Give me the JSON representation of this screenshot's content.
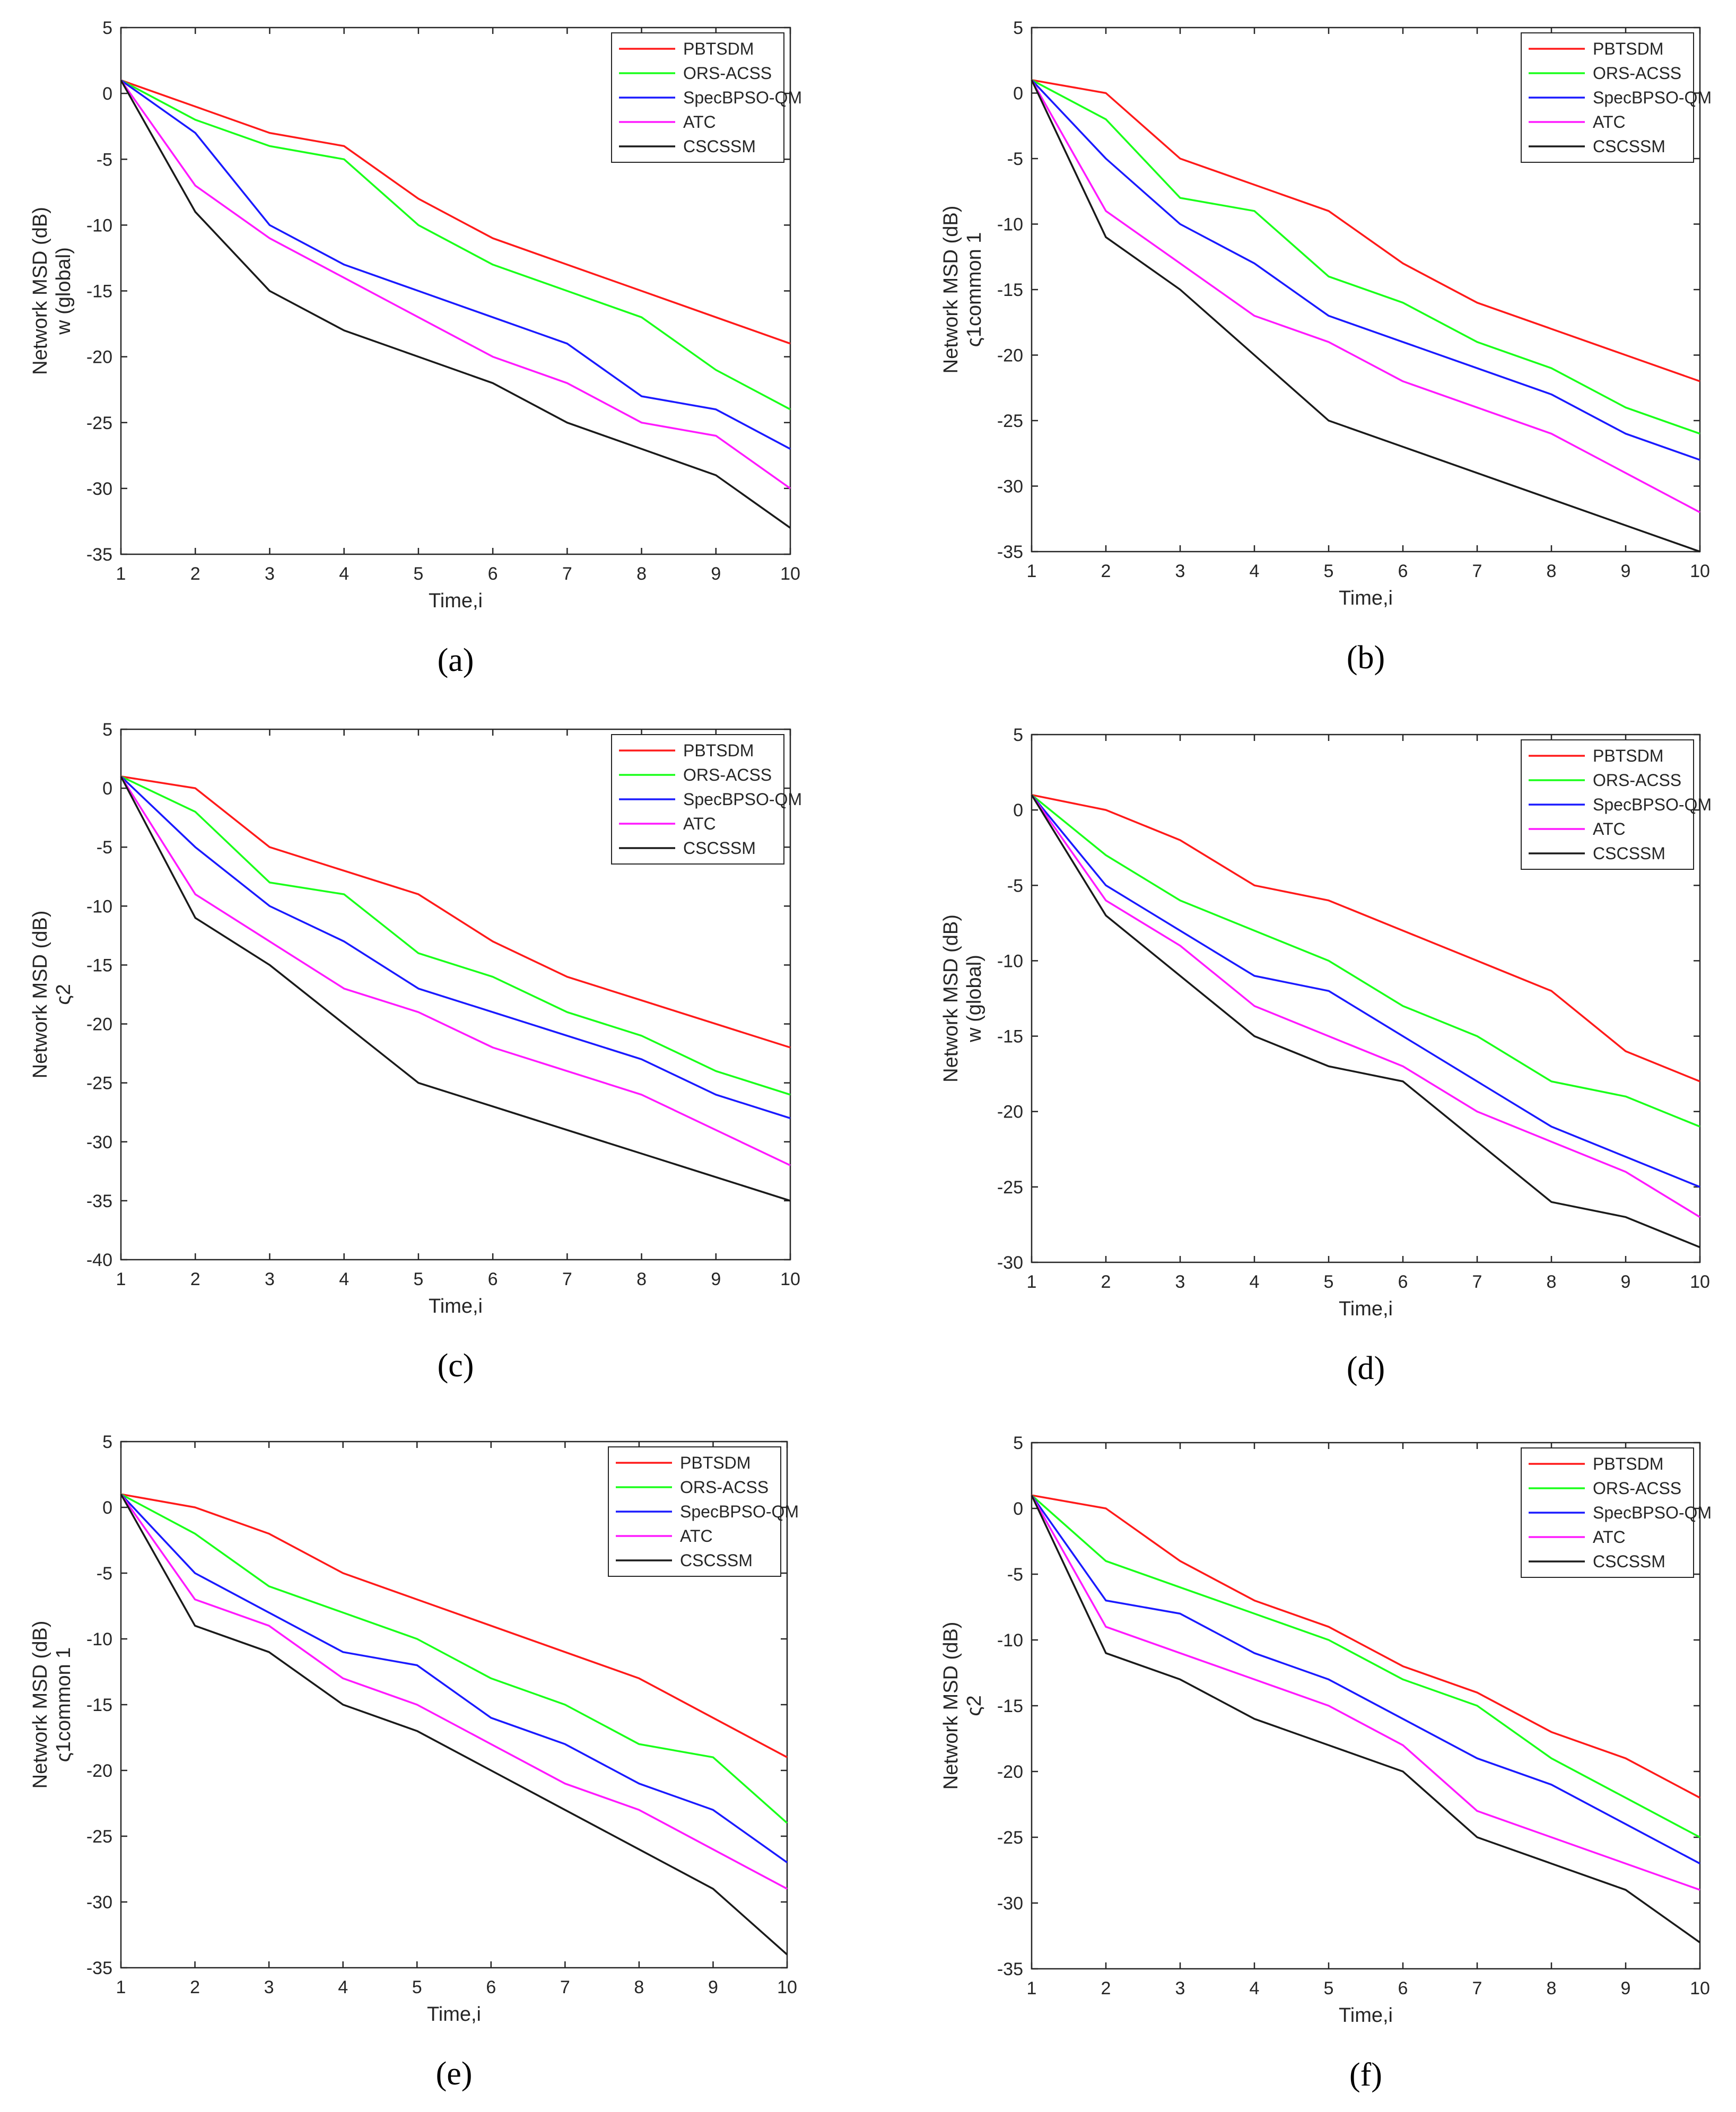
{
  "colors": {
    "PBTSDM": "#ff1a1a",
    "ORS-ACSS": "#1aff1a",
    "SpecBPSO-QM": "#1a1aff",
    "ATC": "#ff1aff",
    "CSCSSM": "#1a1a1a",
    "axis": "#262626"
  },
  "chart_data": [
    {
      "id": "a",
      "type": "line",
      "label": "(a)",
      "xlabel": "Time,i",
      "ylabel": "Network MSD (dB)",
      "ysub": "w (global)",
      "xlim": [
        1,
        10
      ],
      "ylim": [
        -35,
        5
      ],
      "xticks": [
        1,
        2,
        3,
        4,
        5,
        6,
        7,
        8,
        9,
        10
      ],
      "yticks": [
        5,
        0,
        -5,
        -10,
        -15,
        -20,
        -25,
        -30,
        -35
      ],
      "legend_position": "top-right",
      "x": [
        1,
        2,
        3,
        4,
        5,
        6,
        7,
        8,
        9,
        10
      ],
      "series": [
        {
          "name": "PBTSDM",
          "values": [
            1,
            -1,
            -3,
            -4,
            -8,
            -11,
            -13,
            -15,
            -17,
            -19
          ]
        },
        {
          "name": "ORS-ACSS",
          "values": [
            1,
            -2,
            -4,
            -5,
            -10,
            -13,
            -15,
            -17,
            -21,
            -24
          ]
        },
        {
          "name": "SpecBPSO-QM",
          "values": [
            1,
            -3,
            -10,
            -13,
            -15,
            -17,
            -19,
            -23,
            -24,
            -27
          ]
        },
        {
          "name": "ATC",
          "values": [
            1,
            -7,
            -11,
            -14,
            -17,
            -20,
            -22,
            -25,
            -26,
            -30
          ]
        },
        {
          "name": "CSCSSM",
          "values": [
            1,
            -9,
            -15,
            -18,
            -20,
            -22,
            -25,
            -27,
            -29,
            -33
          ]
        }
      ]
    },
    {
      "id": "b",
      "type": "line",
      "label": "(b)",
      "xlabel": "Time,i",
      "ylabel": "Network MSD (dB)",
      "ysub": "ς1common 1",
      "xlim": [
        1,
        10
      ],
      "ylim": [
        -35,
        5
      ],
      "xticks": [
        1,
        2,
        3,
        4,
        5,
        6,
        7,
        8,
        9,
        10
      ],
      "yticks": [
        5,
        0,
        -5,
        -10,
        -15,
        -20,
        -25,
        -30,
        -35
      ],
      "legend_position": "top-right",
      "x": [
        1,
        2,
        3,
        4,
        5,
        6,
        7,
        8,
        9,
        10
      ],
      "series": [
        {
          "name": "PBTSDM",
          "values": [
            1,
            0,
            -5,
            -7,
            -9,
            -13,
            -16,
            -18,
            -20,
            -22
          ]
        },
        {
          "name": "ORS-ACSS",
          "values": [
            1,
            -2,
            -8,
            -9,
            -14,
            -16,
            -19,
            -21,
            -24,
            -26
          ]
        },
        {
          "name": "SpecBPSO-QM",
          "values": [
            1,
            -5,
            -10,
            -13,
            -17,
            -19,
            -21,
            -23,
            -26,
            -28
          ]
        },
        {
          "name": "ATC",
          "values": [
            1,
            -9,
            -13,
            -17,
            -19,
            -22,
            -24,
            -26,
            -29,
            -32
          ]
        },
        {
          "name": "CSCSSM",
          "values": [
            1,
            -11,
            -15,
            -20,
            -25,
            -27,
            -29,
            -31,
            -33,
            -35
          ]
        }
      ]
    },
    {
      "id": "c",
      "type": "line",
      "label": "(c)",
      "xlabel": "Time,i",
      "ylabel": "Network MSD (dB)",
      "ysub": "ς2",
      "xlim": [
        1,
        10
      ],
      "ylim": [
        -40,
        5
      ],
      "xticks": [
        1,
        2,
        3,
        4,
        5,
        6,
        7,
        8,
        9,
        10
      ],
      "yticks": [
        5,
        0,
        -5,
        -10,
        -15,
        -20,
        -25,
        -30,
        -35,
        -40
      ],
      "legend_position": "top-right",
      "x": [
        1,
        2,
        3,
        4,
        5,
        6,
        7,
        8,
        9,
        10
      ],
      "series": [
        {
          "name": "PBTSDM",
          "values": [
            1,
            0,
            -5,
            -7,
            -9,
            -13,
            -16,
            -18,
            -20,
            -22
          ]
        },
        {
          "name": "ORS-ACSS",
          "values": [
            1,
            -2,
            -8,
            -9,
            -14,
            -16,
            -19,
            -21,
            -24,
            -26
          ]
        },
        {
          "name": "SpecBPSO-QM",
          "values": [
            1,
            -5,
            -10,
            -13,
            -17,
            -19,
            -21,
            -23,
            -26,
            -28
          ]
        },
        {
          "name": "ATC",
          "values": [
            1,
            -9,
            -13,
            -17,
            -19,
            -22,
            -24,
            -26,
            -29,
            -32
          ]
        },
        {
          "name": "CSCSSM",
          "values": [
            1,
            -11,
            -15,
            -20,
            -25,
            -27,
            -29,
            -31,
            -33,
            -35
          ]
        }
      ]
    },
    {
      "id": "d",
      "type": "line",
      "label": "(d)",
      "xlabel": "Time,i",
      "ylabel": "Network MSD (dB)",
      "ysub": "w (global)",
      "xlim": [
        1,
        10
      ],
      "ylim": [
        -30,
        5
      ],
      "xticks": [
        1,
        2,
        3,
        4,
        5,
        6,
        7,
        8,
        9,
        10
      ],
      "yticks": [
        5,
        0,
        -5,
        -10,
        -15,
        -20,
        -25,
        -30
      ],
      "legend_position": "top-right",
      "x": [
        1,
        2,
        3,
        4,
        5,
        6,
        7,
        8,
        9,
        10
      ],
      "series": [
        {
          "name": "PBTSDM",
          "values": [
            1,
            0,
            -2,
            -5,
            -6,
            -8,
            -10,
            -12,
            -16,
            -18
          ]
        },
        {
          "name": "ORS-ACSS",
          "values": [
            1,
            -3,
            -6,
            -8,
            -10,
            -13,
            -15,
            -18,
            -19,
            -21
          ]
        },
        {
          "name": "SpecBPSO-QM",
          "values": [
            1,
            -5,
            -8,
            -11,
            -12,
            -15,
            -18,
            -21,
            -23,
            -25
          ]
        },
        {
          "name": "ATC",
          "values": [
            1,
            -6,
            -9,
            -13,
            -15,
            -17,
            -20,
            -22,
            -24,
            -27
          ]
        },
        {
          "name": "CSCSSM",
          "values": [
            1,
            -7,
            -11,
            -15,
            -17,
            -18,
            -22,
            -26,
            -27,
            -29
          ]
        }
      ]
    },
    {
      "id": "e",
      "type": "line",
      "label": "(e)",
      "xlabel": "Time,i",
      "ylabel": "Network MSD (dB)",
      "ysub": "ς1common 1",
      "xlim": [
        1,
        10
      ],
      "ylim": [
        -35,
        5
      ],
      "xticks": [
        1,
        2,
        3,
        4,
        5,
        6,
        7,
        8,
        9,
        10
      ],
      "yticks": [
        5,
        0,
        -5,
        -10,
        -15,
        -20,
        -25,
        -30,
        -35
      ],
      "legend_position": "top-right",
      "x": [
        1,
        2,
        3,
        4,
        5,
        6,
        7,
        8,
        9,
        10
      ],
      "series": [
        {
          "name": "PBTSDM",
          "values": [
            1,
            0,
            -2,
            -5,
            -7,
            -9,
            -11,
            -13,
            -16,
            -19
          ]
        },
        {
          "name": "ORS-ACSS",
          "values": [
            1,
            -2,
            -6,
            -8,
            -10,
            -13,
            -15,
            -18,
            -19,
            -24
          ]
        },
        {
          "name": "SpecBPSO-QM",
          "values": [
            1,
            -5,
            -8,
            -11,
            -12,
            -16,
            -18,
            -21,
            -23,
            -27
          ]
        },
        {
          "name": "ATC",
          "values": [
            1,
            -7,
            -9,
            -13,
            -15,
            -18,
            -21,
            -23,
            -26,
            -29
          ]
        },
        {
          "name": "CSCSSM",
          "values": [
            1,
            -9,
            -11,
            -15,
            -17,
            -20,
            -23,
            -26,
            -29,
            -34
          ]
        }
      ]
    },
    {
      "id": "f",
      "type": "line",
      "label": "(f)",
      "xlabel": "Time,i",
      "ylabel": "Network MSD (dB)",
      "ysub": "ς2",
      "xlim": [
        1,
        10
      ],
      "ylim": [
        -35,
        5
      ],
      "xticks": [
        1,
        2,
        3,
        4,
        5,
        6,
        7,
        8,
        9,
        10
      ],
      "yticks": [
        5,
        0,
        -5,
        -10,
        -15,
        -20,
        -25,
        -30,
        -35
      ],
      "legend_position": "top-right",
      "x": [
        1,
        2,
        3,
        4,
        5,
        6,
        7,
        8,
        9,
        10
      ],
      "series": [
        {
          "name": "PBTSDM",
          "values": [
            1,
            0,
            -4,
            -7,
            -9,
            -12,
            -14,
            -17,
            -19,
            -22
          ]
        },
        {
          "name": "ORS-ACSS",
          "values": [
            1,
            -4,
            -6,
            -8,
            -10,
            -13,
            -15,
            -19,
            -22,
            -25
          ]
        },
        {
          "name": "SpecBPSO-QM",
          "values": [
            1,
            -7,
            -8,
            -11,
            -13,
            -16,
            -19,
            -21,
            -24,
            -27
          ]
        },
        {
          "name": "ATC",
          "values": [
            1,
            -9,
            -11,
            -13,
            -15,
            -18,
            -23,
            -25,
            -27,
            -29
          ]
        },
        {
          "name": "CSCSSM",
          "values": [
            1,
            -11,
            -13,
            -16,
            -18,
            -20,
            -25,
            -27,
            -29,
            -33
          ]
        }
      ]
    }
  ]
}
